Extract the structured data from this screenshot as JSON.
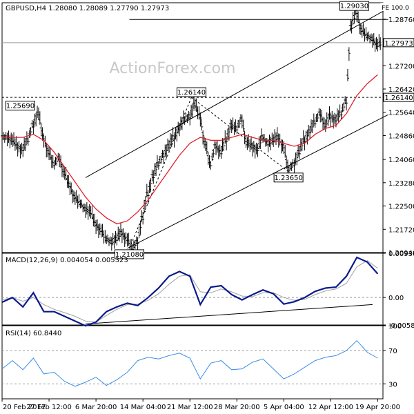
{
  "chart_data": [
    {
      "type": "line",
      "panel": "price",
      "title": "GBPUSD,H4  1.28080 1.28089 1.27790 1.27973",
      "watermark": "ActionForex.com",
      "ylim": [
        1.2094,
        1.2931
      ],
      "y_ticks": [
        "1.28760",
        "1.27200",
        "1.26420",
        "1.25640",
        "1.24860",
        "1.24060",
        "1.23280",
        "1.22500",
        "1.21720",
        "1.20940"
      ],
      "y_tick_values": [
        1.2876,
        1.272,
        1.2642,
        1.2564,
        1.2486,
        1.2406,
        1.2328,
        1.225,
        1.2172,
        1.2094
      ],
      "current_price_label": "1.27973",
      "current_price": 1.27973,
      "level_price_label": "1.26140",
      "level_price": 1.2614,
      "annotations": [
        {
          "text": "1.29030",
          "x": 67.5,
          "y": 1.2903
        },
        {
          "text": "1.26140",
          "x": 36.3,
          "y": 1.2614
        },
        {
          "text": "1.25690",
          "x": 3.5,
          "y": 1.2569
        },
        {
          "text": "1.23650",
          "x": 54.9,
          "y": 1.2365
        },
        {
          "text": "1.21080",
          "x": 24.4,
          "y": 1.2108
        },
        {
          "text": "FE 100.0",
          "x": 72.5,
          "y": 1.2903
        }
      ],
      "lines": {
        "fe_level": {
          "x": [
            24.4,
            74
          ],
          "y": [
            1.2875,
            1.2875
          ]
        },
        "channel_upper": {
          "x": [
            16,
            74
          ],
          "y": [
            1.2345,
            1.2912
          ]
        },
        "channel_lower": {
          "x": [
            24,
            74
          ],
          "y": [
            1.2108,
            1.2556
          ]
        },
        "dashed_up": {
          "x": [
            24.4,
            36.3
          ],
          "y": [
            1.2108,
            1.2614
          ]
        },
        "dashed_down": {
          "x": [
            36.3,
            54.9
          ],
          "y": [
            1.2614,
            1.2365
          ]
        }
      },
      "series": [
        {
          "kind": "price",
          "x": [
            0,
            1,
            2,
            3,
            4,
            5,
            6,
            7,
            8,
            9,
            10,
            11,
            12,
            13,
            14,
            15,
            16,
            17,
            18,
            19,
            20,
            21,
            22,
            23,
            24,
            25,
            26,
            27,
            28,
            29,
            30,
            31,
            32,
            33,
            34,
            35,
            36,
            37,
            38,
            39,
            40,
            41,
            42,
            43,
            44,
            45,
            46,
            47,
            48,
            49,
            50,
            51,
            52,
            53,
            54,
            55,
            56,
            57,
            58,
            59,
            60,
            61,
            62,
            63,
            64,
            65,
            66,
            67,
            68,
            69,
            70,
            71,
            72
          ],
          "y": [
            1.248,
            1.247,
            1.245,
            1.244,
            1.247,
            1.252,
            1.256,
            1.248,
            1.243,
            1.239,
            1.241,
            1.236,
            1.232,
            1.228,
            1.226,
            1.224,
            1.223,
            1.219,
            1.217,
            1.214,
            1.213,
            1.214,
            1.216,
            1.214,
            1.211,
            1.213,
            1.221,
            1.229,
            1.235,
            1.239,
            1.242,
            1.245,
            1.248,
            1.251,
            1.254,
            1.255,
            1.259,
            1.255,
            1.246,
            1.239,
            1.245,
            1.243,
            1.247,
            1.252,
            1.251,
            1.254,
            1.246,
            1.245,
            1.244,
            1.248,
            1.246,
            1.247,
            1.248,
            1.245,
            1.2375,
            1.239,
            1.243,
            1.247,
            1.25,
            1.253,
            1.256,
            1.252,
            1.255,
            1.254,
            1.256,
            1.26,
            1.285,
            1.29,
            1.284,
            1.282,
            1.281,
            1.279,
            1.2797
          ]
        },
        {
          "kind": "sma",
          "x": [
            0,
            2,
            4,
            6,
            8,
            10,
            12,
            14,
            16,
            18,
            20,
            22,
            24,
            26,
            28,
            30,
            32,
            34,
            36,
            38,
            40,
            42,
            44,
            46,
            48,
            50,
            52,
            54,
            56,
            58,
            60,
            62,
            64,
            66,
            68,
            70,
            72
          ],
          "y": [
            1.248,
            1.248,
            1.248,
            1.249,
            1.247,
            1.243,
            1.238,
            1.233,
            1.228,
            1.224,
            1.221,
            1.219,
            1.22,
            1.223,
            1.227,
            1.232,
            1.237,
            1.242,
            1.246,
            1.248,
            1.247,
            1.247,
            1.248,
            1.249,
            1.248,
            1.247,
            1.247,
            1.246,
            1.245,
            1.246,
            1.249,
            1.251,
            1.252,
            1.256,
            1.262,
            1.266,
            1.269
          ]
        }
      ]
    },
    {
      "type": "line",
      "panel": "macd",
      "title": "MACD(12,26,9) 0.004054 0.005323",
      "ylim": [
        -0.00582,
        0.00937
      ],
      "y_ticks": [
        "0.009367",
        "0.00",
        "-0.005819"
      ],
      "y_tick_values": [
        0.009367,
        0.0,
        -0.005819
      ],
      "zero_marker": "0.00",
      "trendline": {
        "x": [
          16,
          71
        ],
        "y": [
          -0.0056,
          -0.0015
        ]
      },
      "series": [
        {
          "name": "MACD",
          "x": [
            0,
            2,
            4,
            6,
            8,
            10,
            12,
            14,
            16,
            18,
            20,
            22,
            24,
            26,
            28,
            30,
            32,
            34,
            36,
            38,
            40,
            42,
            44,
            46,
            48,
            50,
            52,
            54,
            56,
            58,
            60,
            62,
            64,
            66,
            68,
            70,
            72
          ],
          "y": [
            -0.001,
            0.0,
            -0.002,
            0.001,
            -0.003,
            -0.003,
            -0.004,
            -0.005,
            -0.006,
            -0.0052,
            -0.003,
            -0.002,
            -0.0012,
            -0.0017,
            0.0,
            0.002,
            0.0045,
            0.0055,
            0.0045,
            -0.0015,
            0.0022,
            0.0025,
            0.0006,
            -0.0005,
            0.0006,
            0.0016,
            0.0008,
            -0.0014,
            -0.0009,
            0.0,
            0.0013,
            0.002,
            0.0022,
            0.0045,
            0.0085,
            0.0075,
            0.005
          ]
        },
        {
          "name": "Signal",
          "x": [
            0,
            2,
            4,
            6,
            8,
            10,
            12,
            14,
            16,
            18,
            20,
            22,
            24,
            26,
            28,
            30,
            32,
            34,
            36,
            38,
            40,
            42,
            44,
            46,
            48,
            50,
            52,
            54,
            56,
            58,
            60,
            62,
            64,
            66,
            68,
            70,
            72
          ],
          "y": [
            -0.0005,
            0.0,
            -0.0008,
            0.0,
            -0.0015,
            -0.0025,
            -0.0032,
            -0.004,
            -0.005,
            -0.0052,
            -0.0038,
            -0.0025,
            -0.0015,
            -0.0014,
            -0.0006,
            0.0008,
            0.0028,
            0.0045,
            0.0048,
            0.0012,
            0.001,
            0.0018,
            0.0012,
            0.0003,
            0.0002,
            0.001,
            0.001,
            0.0,
            -0.0006,
            -0.0004,
            0.0006,
            0.0014,
            0.0018,
            0.003,
            0.0065,
            0.0078,
            0.0062
          ]
        }
      ]
    },
    {
      "type": "line",
      "panel": "rsi",
      "title": "RSI(14) 60.8440",
      "ylim": [
        12,
        100
      ],
      "y_ticks": [
        "100",
        "70",
        "30"
      ],
      "y_tick_values": [
        100,
        70,
        30
      ],
      "series": [
        {
          "name": "RSI",
          "x": [
            0,
            2,
            4,
            6,
            8,
            10,
            12,
            14,
            16,
            18,
            20,
            22,
            24,
            26,
            28,
            30,
            32,
            34,
            36,
            38,
            40,
            42,
            44,
            46,
            48,
            50,
            52,
            54,
            56,
            58,
            60,
            62,
            64,
            66,
            68,
            70,
            72
          ],
          "y": [
            48,
            58,
            47,
            61,
            42,
            44,
            33,
            27,
            32,
            38,
            28,
            35,
            44,
            58,
            62,
            60,
            64,
            67,
            61,
            36,
            55,
            58,
            47,
            48,
            56,
            60,
            48,
            36,
            42,
            50,
            58,
            62,
            64,
            70,
            82,
            68,
            61
          ]
        }
      ]
    }
  ],
  "x_axis": {
    "range": [
      0,
      73
    ],
    "tick_labels": [
      "20 Feb 2017",
      "27 Feb 12:00",
      "6 Mar 20:00",
      "14 Mar 04:00",
      "21 Mar 12:00",
      "28 Mar 20:00",
      "5 Apr 04:00",
      "12 Apr 12:00",
      "19 Apr 20:00"
    ],
    "tick_positions": [
      0,
      9,
      18,
      27,
      36,
      45,
      54,
      63,
      72
    ]
  }
}
